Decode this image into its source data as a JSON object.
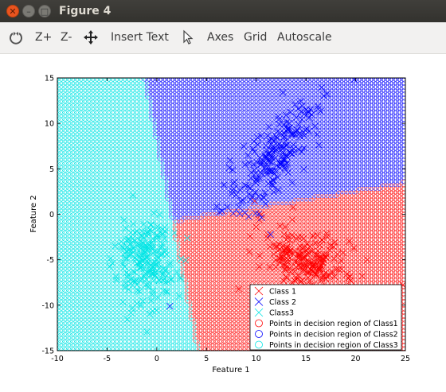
{
  "window": {
    "title": "Figure 4"
  },
  "toolbar": {
    "reset_icon": "reset-rotate-icon",
    "zoom_in": "Z+",
    "zoom_out": "Z-",
    "pan_icon": "pan-move-icon",
    "insert_text": "Insert Text",
    "select_icon": "select-pointer-icon",
    "axes": "Axes",
    "grid": "Grid",
    "autoscale": "Autoscale"
  },
  "chart_data": {
    "type": "scatter",
    "xlabel": "Feature 1",
    "ylabel": "Feature 2",
    "xlim": [
      -10,
      25
    ],
    "ylim": [
      -15,
      15
    ],
    "xticks": [
      -10,
      -5,
      0,
      5,
      10,
      15,
      20,
      25
    ],
    "yticks": [
      -15,
      -10,
      -5,
      0,
      5,
      10,
      15
    ],
    "grid": false,
    "legend_position": "bottom-right",
    "colors": {
      "class1": "#ff0000",
      "class2": "#0000ff",
      "class3": "#00e5e5"
    },
    "clusters": [
      {
        "name": "Class 1",
        "center": [
          15,
          -5
        ],
        "spread": [
          2.5,
          1.6
        ],
        "slope": -0.35
      },
      {
        "name": "Class 2",
        "center": [
          12,
          6.5
        ],
        "spread": [
          2.5,
          2.0
        ],
        "slope": 1.1
      },
      {
        "name": "Class3",
        "center": [
          -1,
          -5
        ],
        "spread": [
          1.5,
          2.5
        ],
        "slope": 0.0
      }
    ],
    "legend": [
      {
        "label": "Class 1",
        "marker": "x",
        "color": "#ff0000"
      },
      {
        "label": "Class 2",
        "marker": "x",
        "color": "#0000ff"
      },
      {
        "label": "Class3",
        "marker": "x",
        "color": "#00e5e5"
      },
      {
        "label": "Points in decision region of Class1",
        "marker": "o",
        "color": "#ff0000"
      },
      {
        "label": "Points in decision region of Class2",
        "marker": "o",
        "color": "#0000ff"
      },
      {
        "label": "Points in decision region of Class3",
        "marker": "o",
        "color": "#00e5e5"
      }
    ]
  }
}
